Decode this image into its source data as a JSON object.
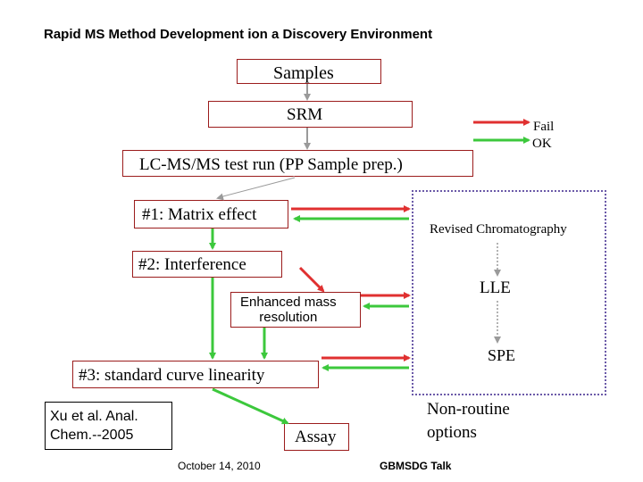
{
  "title": "Rapid MS Method Development ion a Discovery Environment",
  "legend": {
    "fail": "Fail",
    "ok": "OK"
  },
  "nodes": {
    "samples": "Samples",
    "srm": "SRM",
    "lcms": "LC-MS/MS test run (PP Sample prep.)",
    "matrix": "#1: Matrix effect",
    "interference": "#2: Interference",
    "enhanced": "Enhanced mass\nresolution",
    "standard_curve": "#3: standard curve linearity",
    "citation": "Xu et al. Anal.\nChem.--2005",
    "assay": "Assay"
  },
  "options": {
    "revised": "Revised Chromatography",
    "lle": "LLE",
    "spe": "SPE",
    "non_routine": "Non-routine\noptions"
  },
  "footer": {
    "date": "October 14, 2010",
    "talk": "GBMSDG Talk"
  },
  "colors": {
    "fail": "#e03030",
    "ok": "#3cc83c",
    "neutral": "#9a9a9a",
    "box_border": "#9b1c1c",
    "dashed": "#6b5aa8"
  }
}
